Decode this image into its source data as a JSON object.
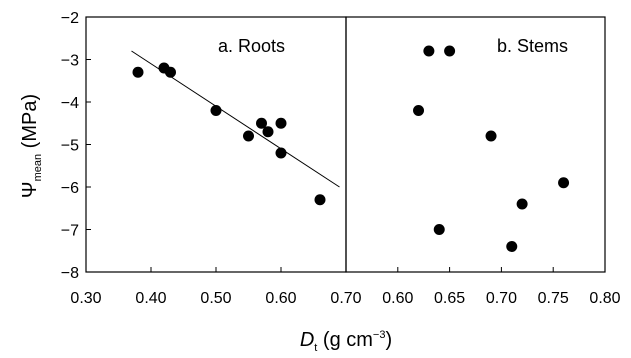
{
  "chart_data": [
    {
      "type": "scatter",
      "panel": "a",
      "title": "a. Roots",
      "xlim": [
        0.3,
        0.7
      ],
      "ylim": [
        -8,
        -2
      ],
      "x_ticks": [
        "0.30",
        "0.40",
        "0.50",
        "0.60",
        "0.70"
      ],
      "x_tick_values": [
        0.3,
        0.4,
        0.5,
        0.6,
        0.7
      ],
      "y_ticks": [
        "−2",
        "−3",
        "−4",
        "−5",
        "−6",
        "−7",
        "−8"
      ],
      "y_tick_values": [
        -2,
        -3,
        -4,
        -5,
        -6,
        -7,
        -8
      ],
      "points": [
        {
          "x": 0.38,
          "y": -3.3
        },
        {
          "x": 0.42,
          "y": -3.2
        },
        {
          "x": 0.43,
          "y": -3.3
        },
        {
          "x": 0.5,
          "y": -4.2
        },
        {
          "x": 0.55,
          "y": -4.8
        },
        {
          "x": 0.57,
          "y": -4.5
        },
        {
          "x": 0.58,
          "y": -4.7
        },
        {
          "x": 0.6,
          "y": -4.5
        },
        {
          "x": 0.6,
          "y": -5.2
        },
        {
          "x": 0.66,
          "y": -6.3
        }
      ],
      "fit_line": {
        "x": [
          0.37,
          0.69
        ],
        "y": [
          -2.8,
          -6.0
        ]
      }
    },
    {
      "type": "scatter",
      "panel": "b",
      "title": "b. Stems",
      "xlim": [
        0.55,
        0.8
      ],
      "ylim": [
        -8,
        -2
      ],
      "x_ticks": [
        "0.60",
        "0.65",
        "0.70",
        "0.75",
        "0.80"
      ],
      "x_tick_values": [
        0.6,
        0.65,
        0.7,
        0.75,
        0.8
      ],
      "points": [
        {
          "x": 0.62,
          "y": -4.2
        },
        {
          "x": 0.63,
          "y": -2.8
        },
        {
          "x": 0.64,
          "y": -7.0
        },
        {
          "x": 0.65,
          "y": -2.8
        },
        {
          "x": 0.69,
          "y": -4.8
        },
        {
          "x": 0.71,
          "y": -7.4
        },
        {
          "x": 0.72,
          "y": -6.4
        },
        {
          "x": 0.76,
          "y": -5.9
        }
      ]
    }
  ],
  "axes": {
    "ylabel_symbol": "Ψ",
    "ylabel_sub": "mean",
    "ylabel_unit": " (MPa)",
    "xlabel_symbol": "D",
    "xlabel_sub": "t",
    "xlabel_unit": " (g cm",
    "xlabel_sup": "−3",
    "xlabel_close": ")"
  },
  "colors": {
    "marker": "#000000",
    "line": "#000000",
    "frame": "#000000"
  }
}
